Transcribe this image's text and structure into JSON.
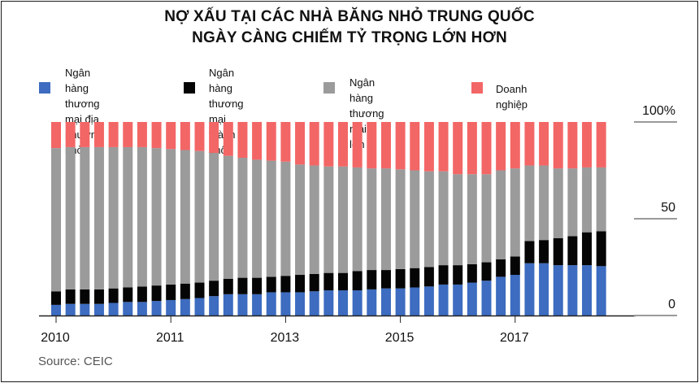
{
  "title_line1": "NỢ XẤU TẠI CÁC NHÀ BĂNG NHỎ TRUNG QUỐC",
  "title_line2": "NGÀY CÀNG CHIẾM TỶ TRỌNG LỚN HƠN",
  "source": "Source: CEIC",
  "colors": {
    "rural": "#3d6cc0",
    "city": "#050505",
    "large": "#9b9b9b",
    "enterprise": "#f36666"
  },
  "chart_data": {
    "type": "bar",
    "stacked": true,
    "x_tick_labels": [
      "2010",
      "2011",
      "2013",
      "2015",
      "2017"
    ],
    "x_tick_bar_index": [
      0,
      8,
      16,
      24,
      32
    ],
    "y_tick_labels": [
      "100%",
      "50",
      "0"
    ],
    "ylim": [
      0,
      100
    ],
    "series": [
      {
        "name": "Ngân hàng\nthương mại địa\nphương nhỏ",
        "color_key": "rural",
        "values": [
          5.5,
          6,
          6,
          6,
          6.5,
          7,
          7,
          7.5,
          8,
          8.5,
          9,
          10,
          11,
          11,
          11,
          12,
          12,
          12,
          12.5,
          13,
          13,
          13,
          13.5,
          14,
          14,
          14.5,
          15,
          16,
          16,
          17,
          18,
          20,
          21,
          27,
          27,
          26,
          26,
          26,
          25.5
        ]
      },
      {
        "name": "Ngân hàng\nthương mại\nthành phố",
        "color_key": "city",
        "values": [
          7,
          7.5,
          7.5,
          7.5,
          7.5,
          7.5,
          8,
          8,
          8,
          8,
          8,
          8,
          8,
          8.5,
          8.5,
          8,
          8.5,
          9,
          9,
          9,
          9,
          10,
          10,
          9.5,
          10,
          10,
          10,
          10,
          10,
          9.5,
          9.5,
          9,
          9.5,
          11.5,
          12,
          14,
          15,
          17,
          18
        ]
      },
      {
        "name": "Ngân hàng\nthương mại lớn",
        "color_key": "large",
        "values": [
          74,
          73.5,
          73.5,
          73.5,
          73,
          72.5,
          72,
          71,
          70,
          69,
          68,
          66,
          63.5,
          62,
          61,
          60,
          59,
          57,
          56,
          55,
          55,
          53.5,
          52.5,
          52.5,
          51.5,
          50.5,
          49.5,
          48.5,
          47,
          46.5,
          45.5,
          46,
          45.5,
          39,
          38.5,
          36,
          35,
          33.5,
          33
        ]
      },
      {
        "name": "Doanh nghiệp",
        "color_key": "enterprise",
        "values": [
          13.5,
          13,
          13,
          13,
          13,
          13,
          13,
          13.5,
          14,
          14.5,
          15,
          16,
          17.5,
          18.5,
          19.5,
          20,
          20.5,
          22,
          22.5,
          23,
          23,
          23.5,
          24,
          24,
          24.5,
          25,
          25.5,
          25.5,
          27,
          27,
          27,
          25,
          24,
          22.5,
          22.5,
          24,
          24,
          23.5,
          23.5
        ]
      }
    ],
    "grid": false,
    "legend_position": "top"
  }
}
